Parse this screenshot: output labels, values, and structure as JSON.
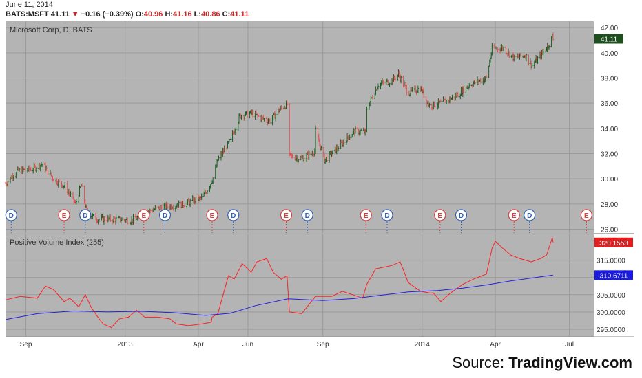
{
  "header": {
    "date": "June 11, 2014",
    "symbol": "BATS:MSFT",
    "last": "41.11",
    "change": "−0.16 (−0.39%)",
    "o_label": "O:",
    "o_val": "40.96",
    "h_label": "H:",
    "h_val": "41.16",
    "l_label": "L:",
    "l_val": "40.86",
    "c_label": "C:",
    "c_val": "41.11"
  },
  "source": {
    "prefix": "Source: ",
    "brand": "TradingView.com"
  },
  "colors": {
    "up": "#1a5e20",
    "down": "#e05050",
    "pvi": "#ff2020",
    "ma": "#2020e0",
    "panel_bg": "#b4b4b4",
    "grid": "#9a9a9a"
  },
  "chart_data": [
    {
      "type": "candlestick",
      "title": "Microsoft Corp, D, BATS",
      "last_price_label": "41.11",
      "y_ticks": [
        "42.00",
        "40.00",
        "38.00",
        "36.00",
        "34.00",
        "32.00",
        "30.00",
        "28.00",
        "26.00"
      ],
      "ylim": [
        25.7,
        42.5
      ],
      "x_ticks": [
        "Sep",
        "2013",
        "Apr",
        "Jun",
        "Sep",
        "2014",
        "Apr",
        "Jul"
      ],
      "x_tick_dates": [
        "2012-09-01",
        "2013-01-01",
        "2013-04-01",
        "2013-06-01",
        "2013-09-01",
        "2014-01-01",
        "2014-04-01",
        "2014-07-01"
      ],
      "date_range": [
        "2012-08-07",
        "2014-07-31"
      ],
      "price_path": [
        [
          "2012-08-07",
          29.6
        ],
        [
          "2012-08-20",
          30.6
        ],
        [
          "2012-09-10",
          30.8
        ],
        [
          "2012-09-21",
          31.2
        ],
        [
          "2012-10-05",
          30.0
        ],
        [
          "2012-10-19",
          29.4
        ],
        [
          "2012-11-01",
          28.0
        ],
        [
          "2012-11-08",
          29.5
        ],
        [
          "2012-11-15",
          27.3
        ],
        [
          "2012-11-28",
          26.8
        ],
        [
          "2012-12-15",
          26.8
        ],
        [
          "2013-01-10",
          26.7
        ],
        [
          "2013-02-01",
          27.5
        ],
        [
          "2013-02-20",
          27.8
        ],
        [
          "2013-03-15",
          28.0
        ],
        [
          "2013-04-05",
          28.5
        ],
        [
          "2013-04-10",
          28.9
        ],
        [
          "2013-04-20",
          30.2
        ],
        [
          "2013-04-25",
          31.5
        ],
        [
          "2013-05-10",
          33.0
        ],
        [
          "2013-05-22",
          35.0
        ],
        [
          "2013-06-05",
          35.2
        ],
        [
          "2013-06-18",
          34.8
        ],
        [
          "2013-06-28",
          34.6
        ],
        [
          "2013-07-10",
          35.5
        ],
        [
          "2013-07-19",
          35.9
        ],
        [
          "2013-07-22",
          31.8
        ],
        [
          "2013-08-06",
          31.6
        ],
        [
          "2013-08-22",
          32.2
        ],
        [
          "2013-08-23",
          33.8
        ],
        [
          "2013-09-03",
          31.5
        ],
        [
          "2013-09-20",
          32.5
        ],
        [
          "2013-10-10",
          33.8
        ],
        [
          "2013-10-24",
          33.7
        ],
        [
          "2013-10-25",
          35.6
        ],
        [
          "2013-11-08",
          37.5
        ],
        [
          "2013-11-25",
          37.8
        ],
        [
          "2013-12-03",
          38.3
        ],
        [
          "2013-12-15",
          36.8
        ],
        [
          "2013-12-30",
          37.2
        ],
        [
          "2014-01-10",
          35.8
        ],
        [
          "2014-01-24",
          36.0
        ],
        [
          "2014-02-10",
          36.5
        ],
        [
          "2014-03-01",
          37.5
        ],
        [
          "2014-03-21",
          38.0
        ],
        [
          "2014-03-28",
          40.3
        ],
        [
          "2014-04-10",
          40.4
        ],
        [
          "2014-04-24",
          39.6
        ],
        [
          "2014-05-08",
          39.8
        ],
        [
          "2014-05-16",
          39.0
        ],
        [
          "2014-05-27",
          39.8
        ],
        [
          "2014-06-05",
          40.6
        ],
        [
          "2014-06-10",
          41.3
        ],
        [
          "2014-06-11",
          41.11
        ]
      ],
      "events": [
        {
          "label": "D",
          "date": "2012-08-14"
        },
        {
          "label": "E",
          "date": "2012-10-18"
        },
        {
          "label": "D",
          "date": "2012-11-13"
        },
        {
          "label": "E",
          "date": "2013-01-24"
        },
        {
          "label": "D",
          "date": "2013-02-19"
        },
        {
          "label": "E",
          "date": "2013-04-18"
        },
        {
          "label": "D",
          "date": "2013-05-14"
        },
        {
          "label": "E",
          "date": "2013-07-18"
        },
        {
          "label": "D",
          "date": "2013-08-13"
        },
        {
          "label": "E",
          "date": "2013-10-24"
        },
        {
          "label": "D",
          "date": "2013-11-19"
        },
        {
          "label": "E",
          "date": "2014-01-23"
        },
        {
          "label": "D",
          "date": "2014-02-18"
        },
        {
          "label": "E",
          "date": "2014-04-24"
        },
        {
          "label": "D",
          "date": "2014-05-13"
        },
        {
          "label": "E",
          "date": "2014-07-22"
        }
      ]
    },
    {
      "type": "line",
      "title": "Positive Volume Index (255)",
      "y_ticks": [
        "315.0000",
        "310.0000",
        "305.0000",
        "300.0000",
        "295.0000"
      ],
      "ylim": [
        292.8,
        322.5
      ],
      "pvi_label": "320.1553",
      "ma_label": "310.6711",
      "series": [
        {
          "role": "pvi",
          "values": [
            [
              "2012-08-07",
              303.5
            ],
            [
              "2012-08-25",
              304.5
            ],
            [
              "2012-09-15",
              304.0
            ],
            [
              "2012-09-25",
              307.5
            ],
            [
              "2012-10-05",
              306.5
            ],
            [
              "2012-10-18",
              303.0
            ],
            [
              "2012-10-25",
              304.0
            ],
            [
              "2012-11-05",
              301.5
            ],
            [
              "2012-11-13",
              305.0
            ],
            [
              "2012-11-20",
              301.5
            ],
            [
              "2012-11-27",
              299.0
            ],
            [
              "2012-12-05",
              296.5
            ],
            [
              "2012-12-15",
              295.5
            ],
            [
              "2012-12-25",
              298.0
            ],
            [
              "2013-01-05",
              298.5
            ],
            [
              "2013-01-15",
              300.5
            ],
            [
              "2013-01-25",
              298.5
            ],
            [
              "2013-02-10",
              298.5
            ],
            [
              "2013-02-25",
              298.0
            ],
            [
              "2013-03-05",
              296.5
            ],
            [
              "2013-03-20",
              296.0
            ],
            [
              "2013-04-05",
              296.5
            ],
            [
              "2013-04-17",
              297.0
            ],
            [
              "2013-04-18",
              298.5
            ],
            [
              "2013-04-25",
              299.5
            ],
            [
              "2013-05-08",
              310.5
            ],
            [
              "2013-05-15",
              309.5
            ],
            [
              "2013-05-25",
              314.0
            ],
            [
              "2013-06-05",
              311.5
            ],
            [
              "2013-06-12",
              314.5
            ],
            [
              "2013-06-24",
              315.5
            ],
            [
              "2013-07-02",
              311.5
            ],
            [
              "2013-07-12",
              309.5
            ],
            [
              "2013-07-19",
              310.5
            ],
            [
              "2013-07-22",
              300.0
            ],
            [
              "2013-08-06",
              299.5
            ],
            [
              "2013-08-23",
              304.5
            ],
            [
              "2013-09-03",
              304.5
            ],
            [
              "2013-09-12",
              304.5
            ],
            [
              "2013-09-25",
              306.0
            ],
            [
              "2013-10-20",
              304.0
            ],
            [
              "2013-10-25",
              308.0
            ],
            [
              "2013-11-05",
              312.5
            ],
            [
              "2013-11-25",
              313.5
            ],
            [
              "2013-12-05",
              314.5
            ],
            [
              "2013-12-15",
              308.5
            ],
            [
              "2013-12-30",
              306.0
            ],
            [
              "2014-01-10",
              305.5
            ],
            [
              "2014-01-15",
              305.5
            ],
            [
              "2014-01-24",
              303.0
            ],
            [
              "2014-02-05",
              305.5
            ],
            [
              "2014-02-20",
              308.0
            ],
            [
              "2014-03-05",
              309.5
            ],
            [
              "2014-03-21",
              311.0
            ],
            [
              "2014-03-28",
              318.5
            ],
            [
              "2014-04-01",
              320.5
            ],
            [
              "2014-04-10",
              318.5
            ],
            [
              "2014-04-20",
              316.5
            ],
            [
              "2014-05-01",
              315.5
            ],
            [
              "2014-05-15",
              314.5
            ],
            [
              "2014-05-27",
              315.5
            ],
            [
              "2014-06-03",
              316.5
            ],
            [
              "2014-06-10",
              321.5
            ],
            [
              "2014-06-11",
              320.15
            ]
          ]
        },
        {
          "role": "ma",
          "values": [
            [
              "2012-08-07",
              297.8
            ],
            [
              "2012-09-15",
              299.5
            ],
            [
              "2012-10-30",
              300.3
            ],
            [
              "2012-12-10",
              300.0
            ],
            [
              "2013-01-20",
              300.2
            ],
            [
              "2013-03-01",
              299.8
            ],
            [
              "2013-04-10",
              299.0
            ],
            [
              "2013-05-10",
              299.6
            ],
            [
              "2013-06-10",
              301.8
            ],
            [
              "2013-07-20",
              303.8
            ],
            [
              "2013-09-01",
              303.3
            ],
            [
              "2013-10-10",
              303.9
            ],
            [
              "2013-11-10",
              304.8
            ],
            [
              "2013-12-15",
              305.8
            ],
            [
              "2014-01-20",
              306.2
            ],
            [
              "2014-02-20",
              306.9
            ],
            [
              "2014-03-20",
              307.8
            ],
            [
              "2014-04-20",
              309.0
            ],
            [
              "2014-06-11",
              310.67
            ]
          ]
        }
      ]
    }
  ]
}
